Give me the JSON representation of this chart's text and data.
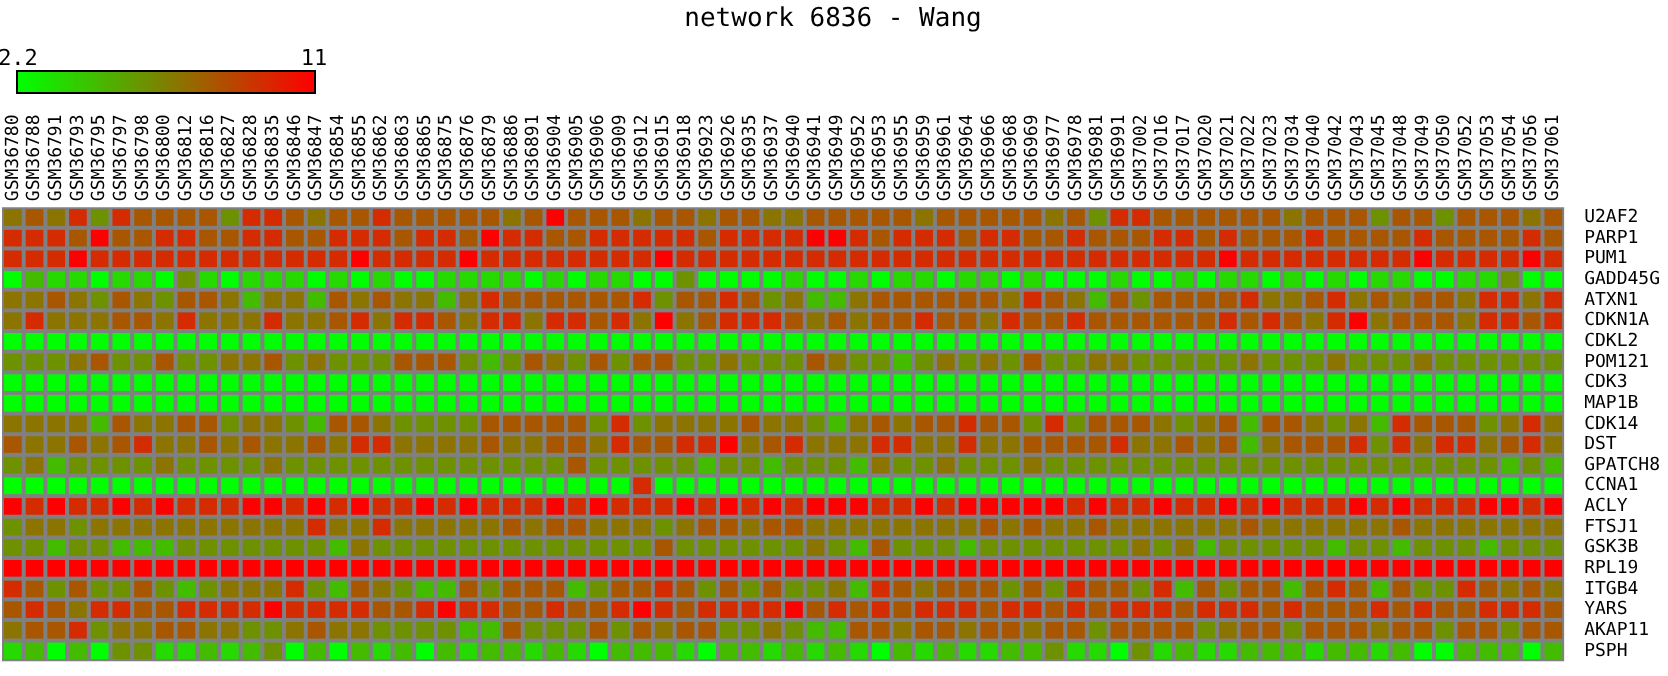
{
  "chart_data": {
    "type": "heatmap",
    "title": "network 6836 - Wang",
    "categories": [
      "GSM36780",
      "GSM36788",
      "GSM36791",
      "GSM36793",
      "GSM36795",
      "GSM36797",
      "GSM36798",
      "GSM36800",
      "GSM36812",
      "GSM36816",
      "GSM36827",
      "GSM36828",
      "GSM36835",
      "GSM36846",
      "GSM36847",
      "GSM36854",
      "GSM36855",
      "GSM36862",
      "GSM36863",
      "GSM36865",
      "GSM36875",
      "GSM36876",
      "GSM36879",
      "GSM36886",
      "GSM36891",
      "GSM36904",
      "GSM36905",
      "GSM36906",
      "GSM36909",
      "GSM36912",
      "GSM36915",
      "GSM36918",
      "GSM36923",
      "GSM36926",
      "GSM36935",
      "GSM36937",
      "GSM36940",
      "GSM36941",
      "GSM36949",
      "GSM36952",
      "GSM36953",
      "GSM36955",
      "GSM36959",
      "GSM36961",
      "GSM36964",
      "GSM36966",
      "GSM36968",
      "GSM36969",
      "GSM36977",
      "GSM36978",
      "GSM36981",
      "GSM36991",
      "GSM37002",
      "GSM37016",
      "GSM37017",
      "GSM37020",
      "GSM37021",
      "GSM37022",
      "GSM37023",
      "GSM37034",
      "GSM37040",
      "GSM37042",
      "GSM37043",
      "GSM37045",
      "GSM37048",
      "GSM37049",
      "GSM37050",
      "GSM37052",
      "GSM37053",
      "GSM37054",
      "GSM37056",
      "GSM37061"
    ],
    "y_categories": [
      "U2AF2",
      "PARP1",
      "PUM1",
      "GADD45G",
      "ATXN1",
      "CDKN1A",
      "CDKL2",
      "POM121",
      "CDK3",
      "MAP1B",
      "CDK14",
      "DST",
      "GPATCH8",
      "CCNA1",
      "ACLY",
      "FTSJ1",
      "GSK3B",
      "RPL19",
      "ITGB4",
      "YARS",
      "AKAP11",
      "PSPH"
    ],
    "clim": [
      2.2,
      11
    ],
    "cticks": [
      2.2,
      11
    ],
    "cells": [
      [
        7,
        8,
        7,
        9.5,
        6,
        9.5,
        8,
        8,
        8,
        8,
        6,
        9.5,
        9.5,
        8,
        7,
        8,
        8,
        9.5,
        8,
        8,
        8,
        8,
        8,
        7,
        8,
        11,
        8,
        8,
        8,
        7,
        8,
        8,
        7,
        8,
        8,
        7,
        7,
        8,
        8,
        8,
        8,
        8,
        7,
        8,
        8,
        8,
        8,
        8,
        7,
        8,
        6,
        9.5,
        9.5,
        8,
        8,
        8,
        8,
        8,
        8,
        7,
        8,
        8,
        8,
        6,
        8,
        8,
        6,
        8,
        8,
        8,
        7,
        8
      ],
      [
        9.5,
        9.5,
        9.5,
        8,
        11,
        8,
        8,
        9.5,
        9.5,
        8,
        8,
        9.5,
        9.5,
        8,
        8,
        9.5,
        9.5,
        9.5,
        8,
        9.5,
        9.5,
        8,
        11,
        9.5,
        9.5,
        8,
        8,
        9.5,
        9.5,
        9.5,
        9.5,
        9.5,
        8,
        9.5,
        9.5,
        9.5,
        9.5,
        11,
        11,
        9.5,
        8,
        9.5,
        9.5,
        9.5,
        8,
        9.5,
        9.5,
        8,
        8,
        9.5,
        8,
        8,
        8,
        9.5,
        9.5,
        8,
        9.5,
        8,
        8,
        8,
        9.5,
        8,
        8,
        8,
        8,
        9.5,
        8,
        8,
        8,
        8,
        9.5,
        8
      ],
      [
        9.5,
        9.5,
        9.5,
        11,
        9.5,
        9.5,
        9.5,
        9.5,
        9.5,
        9.5,
        9.5,
        9.5,
        9.5,
        9.5,
        9.5,
        9.5,
        11,
        9.5,
        9.5,
        9.5,
        9.5,
        11,
        9.5,
        9.5,
        9.5,
        9.5,
        9.5,
        9.5,
        9.5,
        9.5,
        11,
        9.5,
        9.5,
        9.5,
        9.5,
        9.5,
        9.5,
        9.5,
        9.5,
        9.5,
        9.5,
        9.5,
        9.5,
        9.5,
        9.5,
        9.5,
        9.5,
        9.5,
        9.5,
        9.5,
        9.5,
        9.5,
        9.5,
        9.5,
        9.5,
        9.5,
        11,
        9.5,
        9.5,
        9.5,
        9.5,
        9.5,
        9.5,
        9.5,
        9.5,
        11,
        9.5,
        9.5,
        9.5,
        9.5,
        11,
        9.5
      ],
      [
        2.2,
        4.5,
        3.5,
        3.5,
        2.2,
        3.5,
        3.5,
        2.2,
        6,
        3.5,
        2.2,
        3.5,
        3.5,
        3.5,
        2.2,
        3.5,
        2.2,
        3.5,
        2.2,
        2.2,
        3.5,
        3.5,
        3.5,
        3.5,
        2.2,
        3.5,
        2.2,
        3.5,
        3.5,
        2.2,
        2.2,
        6,
        2.2,
        2.2,
        2.2,
        2.2,
        3.5,
        2.2,
        2.2,
        3.5,
        2.2,
        3.5,
        3.5,
        2.2,
        3.5,
        3.5,
        2.2,
        3.5,
        2.2,
        2.2,
        2.2,
        3.5,
        2.2,
        2.2,
        3.5,
        2.2,
        3.5,
        3.5,
        2.2,
        3.5,
        2.2,
        3.5,
        2.2,
        3.5,
        3.5,
        2.2,
        2.2,
        3.5,
        3.5,
        6,
        2.2,
        2.2
      ],
      [
        7,
        7,
        8,
        7,
        6,
        8,
        7,
        6,
        8,
        8,
        7,
        4.5,
        7,
        7,
        4.5,
        8,
        7,
        8,
        7,
        7,
        4.5,
        7,
        9.5,
        8,
        8,
        8,
        8,
        8,
        8,
        9.5,
        6,
        8,
        8,
        9.5,
        8,
        6,
        7,
        4.5,
        4.5,
        7,
        8,
        8,
        8,
        8,
        8,
        8,
        7,
        9.5,
        8,
        7,
        4.5,
        8,
        6,
        8,
        8,
        8,
        8,
        9.5,
        7,
        7,
        8,
        9.5,
        7,
        8,
        7,
        8,
        8,
        7,
        9.5,
        9.5,
        7,
        9.5
      ],
      [
        7,
        9.5,
        7,
        7,
        7,
        8,
        8,
        7,
        9.5,
        7,
        7,
        7,
        9.5,
        7,
        7,
        8,
        9.5,
        7,
        9.5,
        9.5,
        8,
        7,
        9.5,
        9.5,
        7,
        9.5,
        9.5,
        8,
        9.5,
        7,
        11,
        7,
        8,
        9.5,
        9.5,
        9.5,
        8,
        7,
        8,
        7,
        8,
        8,
        9.5,
        8,
        8,
        7,
        9.5,
        8,
        8,
        9.5,
        8,
        8,
        8,
        8,
        8,
        8,
        9.5,
        8,
        9.5,
        8,
        7,
        9.5,
        11,
        7,
        8,
        8,
        8,
        7,
        9.5,
        9.5,
        8,
        9.5
      ],
      [
        2.2,
        2.2,
        2.2,
        2.2,
        2.2,
        2.2,
        2.2,
        2.2,
        2.2,
        2.2,
        2.2,
        2.2,
        2.2,
        2.2,
        2.2,
        2.2,
        2.2,
        2.2,
        2.2,
        2.2,
        2.2,
        2.2,
        2.2,
        2.2,
        2.2,
        2.2,
        2.2,
        2.2,
        2.2,
        2.2,
        2.2,
        2.2,
        2.2,
        2.2,
        2.2,
        2.2,
        2.2,
        2.2,
        2.2,
        2.2,
        2.2,
        2.2,
        2.2,
        2.2,
        2.2,
        2.2,
        2.2,
        2.2,
        2.2,
        2.2,
        2.2,
        2.2,
        2.2,
        2.2,
        2.2,
        2.2,
        2.2,
        2.2,
        2.2,
        2.2,
        2.2,
        2.2,
        2.2,
        2.2,
        2.2,
        2.2,
        2.2,
        2.2,
        2.2,
        2.2,
        2.2,
        2.2
      ],
      [
        6,
        6,
        6,
        7,
        8,
        6,
        6,
        8,
        6,
        6,
        7,
        7,
        8,
        6,
        7,
        6,
        6,
        6,
        8,
        8,
        8,
        6,
        4.5,
        6,
        8,
        7,
        6,
        8,
        6,
        8,
        8,
        6,
        6,
        7,
        6,
        6,
        6,
        8,
        7,
        6,
        6,
        4.5,
        6,
        7,
        6,
        7,
        6,
        8,
        6,
        6,
        7,
        7,
        6,
        6,
        6,
        6,
        6,
        7,
        6,
        6,
        6,
        7,
        6,
        6,
        6,
        7,
        6,
        6,
        6,
        6,
        6,
        6
      ],
      [
        2.2,
        2.2,
        2.2,
        2.2,
        2.2,
        2.2,
        2.2,
        2.2,
        2.2,
        2.2,
        2.2,
        2.2,
        2.2,
        2.2,
        2.2,
        2.2,
        2.2,
        2.2,
        2.2,
        2.2,
        2.2,
        2.2,
        2.2,
        2.2,
        2.2,
        2.2,
        2.2,
        2.2,
        2.2,
        2.2,
        2.2,
        2.2,
        2.2,
        2.2,
        2.2,
        2.2,
        2.2,
        2.2,
        2.2,
        2.2,
        2.2,
        2.2,
        2.2,
        2.2,
        2.2,
        2.2,
        2.2,
        2.2,
        2.2,
        2.2,
        2.2,
        2.2,
        2.2,
        2.2,
        2.2,
        2.2,
        2.2,
        2.2,
        2.2,
        2.2,
        2.2,
        2.2,
        2.2,
        2.2,
        2.2,
        2.2,
        2.2,
        2.2,
        2.2,
        2.2,
        2.2,
        2.2
      ],
      [
        2.2,
        2.2,
        2.2,
        2.2,
        2.2,
        2.2,
        2.2,
        2.2,
        2.2,
        2.2,
        2.2,
        2.2,
        2.2,
        2.2,
        2.2,
        2.2,
        2.2,
        2.2,
        2.2,
        2.2,
        2.2,
        2.2,
        2.2,
        2.2,
        2.2,
        2.2,
        2.2,
        2.2,
        2.2,
        2.2,
        2.2,
        2.2,
        2.2,
        2.2,
        2.2,
        2.2,
        2.2,
        2.2,
        2.2,
        2.2,
        2.2,
        2.2,
        2.2,
        2.2,
        2.2,
        2.2,
        2.2,
        2.2,
        2.2,
        2.2,
        2.2,
        2.2,
        2.2,
        2.2,
        2.2,
        2.2,
        2.2,
        2.2,
        2.2,
        2.2,
        2.2,
        2.2,
        2.2,
        2.2,
        2.2,
        2.2,
        2.2,
        2.2,
        2.2,
        2.2,
        2.2,
        2.2
      ],
      [
        7,
        7,
        7,
        7,
        4.5,
        8,
        7,
        7,
        8,
        8,
        6,
        7,
        7,
        6,
        4.5,
        8,
        8,
        7,
        6,
        6,
        6,
        6,
        8,
        8,
        8,
        8,
        8,
        6,
        9.5,
        6,
        7,
        7,
        7,
        7,
        8,
        7,
        7,
        6,
        4.5,
        7,
        8,
        7,
        8,
        8,
        9.5,
        8,
        8,
        6,
        9.5,
        6,
        8,
        8,
        8,
        7,
        6,
        7,
        8,
        4.5,
        8,
        8,
        7,
        6,
        7,
        4.5,
        9.5,
        8,
        8,
        8,
        6,
        7,
        9.5,
        7
      ],
      [
        8,
        7,
        7,
        8,
        7,
        8,
        9.5,
        7,
        7,
        8,
        7,
        8,
        7,
        7,
        8,
        7,
        9.5,
        9.5,
        7,
        7,
        7,
        7,
        8,
        7,
        7,
        8,
        8,
        7,
        9.5,
        8,
        8,
        9.5,
        9.5,
        11,
        7,
        8,
        9.5,
        7,
        7,
        7,
        9.5,
        9.5,
        7,
        7,
        9.5,
        7,
        7,
        8,
        8,
        8,
        8,
        9.5,
        7,
        7,
        8,
        7,
        8,
        4.5,
        7,
        8,
        8,
        8,
        9.5,
        6,
        9.5,
        7,
        9.5,
        9.5,
        7,
        8,
        9.5,
        7
      ],
      [
        6,
        7,
        4.5,
        6,
        6,
        6,
        6,
        7,
        6,
        6,
        6,
        6,
        7,
        6,
        6,
        6,
        6,
        6,
        6,
        6,
        6,
        6,
        6,
        6,
        6,
        6,
        8,
        6,
        6,
        6,
        6,
        6,
        4.5,
        6,
        6,
        4.5,
        6,
        6,
        6,
        4.5,
        7,
        6,
        6,
        7,
        6,
        6,
        6,
        7,
        6,
        6,
        6,
        6,
        6,
        6,
        6,
        6,
        6,
        6,
        6,
        6,
        6,
        6,
        6,
        6,
        6,
        6,
        6,
        6,
        6,
        4.5,
        6,
        4.5
      ],
      [
        2.2,
        2.2,
        2.2,
        2.2,
        2.2,
        2.2,
        2.2,
        2.2,
        2.2,
        2.2,
        2.2,
        2.2,
        2.2,
        2.2,
        2.2,
        2.2,
        2.2,
        2.2,
        2.2,
        2.2,
        2.2,
        2.2,
        2.2,
        2.2,
        2.2,
        2.2,
        2.2,
        2.2,
        2.2,
        9.5,
        2.2,
        2.2,
        2.2,
        2.2,
        2.2,
        2.2,
        2.2,
        2.2,
        2.2,
        2.2,
        2.2,
        2.2,
        2.2,
        2.2,
        2.2,
        2.2,
        2.2,
        2.2,
        2.2,
        2.2,
        2.2,
        2.2,
        2.2,
        2.2,
        2.2,
        2.2,
        2.2,
        2.2,
        2.2,
        2.2,
        2.2,
        2.2,
        2.2,
        2.2,
        2.2,
        2.2,
        2.2,
        2.2,
        2.2,
        2.2,
        2.2,
        2.2
      ],
      [
        11,
        9.5,
        11,
        9.5,
        9.5,
        11,
        9.5,
        11,
        9.5,
        9.5,
        9.5,
        11,
        11,
        9.5,
        11,
        9.5,
        11,
        9.5,
        9.5,
        11,
        9.5,
        11,
        9.5,
        9.5,
        9.5,
        11,
        9.5,
        11,
        9.5,
        9.5,
        9.5,
        11,
        9.5,
        11,
        9.5,
        11,
        9.5,
        11,
        11,
        11,
        9.5,
        9.5,
        11,
        9.5,
        11,
        11,
        11,
        11,
        11,
        9.5,
        11,
        9.5,
        9.5,
        11,
        9.5,
        9.5,
        11,
        9.5,
        11,
        9.5,
        9.5,
        9.5,
        11,
        9.5,
        11,
        9.5,
        9.5,
        9.5,
        11,
        11,
        9.5,
        11
      ],
      [
        6,
        7,
        7,
        6,
        7,
        7,
        7,
        7,
        7,
        7,
        7,
        7,
        7,
        7,
        9.5,
        7,
        7,
        9.5,
        7,
        7,
        7,
        7,
        7,
        8,
        7,
        8,
        8,
        7,
        7,
        7,
        6,
        7,
        8,
        8,
        7,
        8,
        8,
        7,
        7,
        7,
        7,
        7,
        7,
        7,
        7,
        8,
        7,
        8,
        7,
        7,
        8,
        7,
        7,
        7,
        7,
        7,
        7,
        8,
        7,
        7,
        7,
        7,
        7,
        7,
        8,
        7,
        7,
        7,
        7,
        7,
        7,
        7
      ],
      [
        6,
        6,
        4.5,
        6,
        6,
        4.5,
        4.5,
        4.5,
        6,
        6,
        6,
        6,
        6,
        6,
        6,
        4.5,
        7,
        6,
        6,
        6,
        6,
        6,
        6,
        6,
        6,
        6,
        6,
        6,
        6,
        6,
        8,
        6,
        6,
        6,
        6,
        6,
        6,
        7,
        6,
        4.5,
        8,
        6,
        6,
        6,
        4.5,
        6,
        6,
        6,
        6,
        6,
        6,
        6,
        7,
        6,
        7,
        4.5,
        6,
        6,
        6,
        6,
        6,
        4.5,
        6,
        6,
        4.5,
        6,
        6,
        6,
        4.5,
        6,
        6,
        6
      ],
      [
        11,
        11,
        11,
        11,
        11,
        11,
        11,
        11,
        11,
        11,
        11,
        11,
        11,
        11,
        11,
        11,
        11,
        11,
        11,
        11,
        11,
        11,
        11,
        11,
        11,
        11,
        11,
        11,
        11,
        11,
        11,
        11,
        11,
        11,
        11,
        11,
        11,
        11,
        11,
        11,
        11,
        11,
        11,
        11,
        11,
        11,
        11,
        11,
        11,
        11,
        11,
        11,
        11,
        11,
        11,
        11,
        11,
        11,
        11,
        11,
        11,
        11,
        11,
        11,
        11,
        11,
        11,
        11,
        11,
        11,
        11,
        11
      ],
      [
        9.5,
        8,
        6,
        8,
        6,
        6,
        8,
        6,
        4.5,
        6,
        7,
        7,
        7,
        9.5,
        6,
        4.5,
        8,
        7,
        6,
        4.5,
        4.5,
        8,
        6,
        8,
        8,
        8,
        4.5,
        6,
        8,
        8,
        9.5,
        8,
        6,
        8,
        6,
        8,
        6,
        6,
        7,
        4.5,
        9.5,
        8,
        7,
        8,
        8,
        8,
        6,
        8,
        6,
        9.5,
        8,
        8,
        6,
        9.5,
        4.5,
        8,
        6,
        8,
        8,
        4.5,
        8,
        9.5,
        8,
        4.5,
        8,
        6,
        6,
        9.5,
        8,
        7,
        8,
        7
      ],
      [
        8,
        9.5,
        8,
        7,
        9.5,
        9.5,
        8,
        8,
        9.5,
        9.5,
        9.5,
        9.5,
        11,
        9.5,
        9.5,
        9.5,
        9.5,
        8,
        8,
        9.5,
        11,
        9.5,
        9.5,
        8,
        8,
        9.5,
        8,
        8,
        9.5,
        11,
        9.5,
        8,
        9.5,
        9.5,
        9.5,
        9.5,
        11,
        8,
        9.5,
        8,
        9.5,
        8,
        9.5,
        9.5,
        9.5,
        8,
        9.5,
        9.5,
        8,
        9.5,
        8,
        9.5,
        9.5,
        9.5,
        8,
        9.5,
        9.5,
        9.5,
        8,
        9.5,
        8,
        8,
        8,
        9.5,
        8,
        9.5,
        8,
        8,
        9.5,
        9.5,
        9.5,
        8
      ],
      [
        7,
        8,
        8,
        9.5,
        6,
        7,
        7,
        8,
        8,
        7,
        7,
        6,
        6,
        7,
        8,
        7,
        7,
        6,
        6,
        6,
        6,
        4.5,
        4.5,
        8,
        6,
        6,
        6,
        8,
        6,
        8,
        7,
        8,
        8,
        6,
        6,
        7,
        6,
        4.5,
        4.5,
        8,
        8,
        7,
        8,
        8,
        7,
        8,
        8,
        7,
        8,
        8,
        6,
        8,
        8,
        8,
        8,
        6,
        7,
        8,
        8,
        6,
        8,
        8,
        8,
        7,
        8,
        8,
        6,
        8,
        8,
        6,
        8,
        8
      ],
      [
        3.5,
        4.5,
        2.2,
        4.5,
        2.2,
        6,
        6,
        3.5,
        3.5,
        4.5,
        3.5,
        4.5,
        6,
        2.2,
        4.5,
        2.2,
        4.5,
        3.5,
        4.5,
        2.2,
        4.5,
        3.5,
        4.5,
        4.5,
        3.5,
        4.5,
        3.5,
        2.2,
        4.5,
        4.5,
        4.5,
        3.5,
        2.2,
        4.5,
        4.5,
        3.5,
        4.5,
        3.5,
        4.5,
        3.5,
        2.2,
        4.5,
        3.5,
        4.5,
        3.5,
        3.5,
        4.5,
        4.5,
        6,
        3.5,
        3.5,
        2.2,
        6,
        3.5,
        4.5,
        3.5,
        3.5,
        4.5,
        4.5,
        4.5,
        3.5,
        4.5,
        4.5,
        3.5,
        4.5,
        2.2,
        2.2,
        4.5,
        4.5,
        4.5,
        2.2,
        4.5
      ]
    ]
  }
}
